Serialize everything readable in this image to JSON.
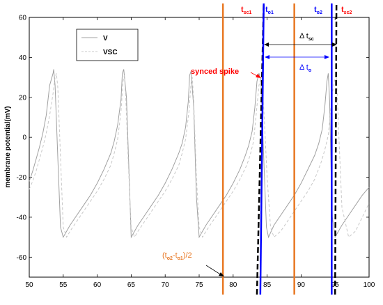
{
  "chart_data": {
    "type": "line",
    "title": "",
    "xlabel": "",
    "ylabel": "membrane potential(mV)",
    "xlim": [
      50,
      100
    ],
    "ylim": [
      -70,
      60
    ],
    "xticks": [
      50,
      55,
      60,
      65,
      70,
      75,
      80,
      85,
      90,
      95,
      100
    ],
    "yticks": [
      -60,
      -40,
      -20,
      0,
      20,
      40,
      60
    ],
    "legend": {
      "position": "top-left",
      "entries": [
        "V",
        "VSC"
      ]
    },
    "series": [
      {
        "name": "V",
        "color": "#a0a0a0",
        "style": "solid",
        "x": [
          50,
          50.5,
          51,
          51.5,
          52,
          52.5,
          53,
          53.5,
          53.6,
          53.8,
          54.2,
          54.6,
          55,
          56,
          57,
          58,
          59,
          60,
          61,
          62,
          62.5,
          63,
          63.5,
          63.7,
          63.9,
          64.3,
          64.7,
          65,
          66,
          67,
          68,
          69,
          70,
          71,
          72,
          72.5,
          73,
          73.4,
          73.6,
          73.8,
          74.2,
          74.6,
          75,
          76,
          77,
          78,
          79,
          80,
          81,
          81.8,
          82.3,
          82.8,
          83.2,
          83.5,
          83.8,
          84.1,
          84.5,
          84.9,
          85.2,
          86,
          87,
          88,
          89,
          90,
          91,
          92,
          92.6,
          93.1,
          93.5,
          93.8,
          94,
          94.2,
          94.4,
          94.6,
          95,
          96,
          97,
          98,
          99,
          100
        ],
        "y": [
          -22,
          -17,
          -11,
          -5,
          2,
          11,
          26,
          32,
          34,
          26,
          -10,
          -45,
          -50,
          -44,
          -39,
          -34,
          -29,
          -23,
          -16,
          -8,
          -2,
          6,
          19,
          32,
          34,
          20,
          -20,
          -50,
          -44,
          -39,
          -34,
          -29,
          -23,
          -16,
          -8,
          -3,
          5,
          18,
          31,
          33,
          15,
          -30,
          -50,
          -44,
          -39,
          -34,
          -29,
          -23,
          -16,
          -9,
          -4,
          3,
          15,
          28,
          32,
          28,
          -10,
          -45,
          -50,
          -44,
          -39,
          -34,
          -29,
          -23,
          -16,
          -9,
          -3,
          4,
          16,
          28,
          32,
          18,
          -15,
          -40,
          -50,
          -44,
          -39,
          -34,
          -29,
          -25
        ]
      },
      {
        "name": "VSC",
        "color": "#c8c8c8",
        "style": "dashed",
        "x": [
          50,
          50.5,
          51,
          51.5,
          52,
          52.5,
          53,
          53.5,
          53.8,
          54,
          54.2,
          54.6,
          55,
          55.5,
          56,
          57,
          58,
          59,
          60,
          61,
          62,
          62.5,
          63,
          63.5,
          63.8,
          64,
          64.2,
          64.6,
          65,
          65.5,
          66,
          67,
          68,
          69,
          70,
          71,
          72,
          72.5,
          73,
          73.5,
          73.8,
          74,
          74.2,
          74.6,
          75,
          75.5,
          76,
          77,
          78,
          79,
          80,
          81,
          82,
          82.5,
          83,
          83.4,
          83.8,
          84.1,
          84.5,
          85,
          85.5,
          86,
          87,
          88,
          89,
          90,
          91,
          92,
          93,
          93.5,
          94,
          94.3,
          94.6,
          94.9,
          95.2,
          95.5,
          96,
          97,
          98,
          99,
          100
        ],
        "y": [
          -26,
          -22,
          -17,
          -11,
          -5,
          2,
          11,
          22,
          30,
          32,
          25,
          -10,
          -45,
          -50,
          -47,
          -42,
          -37,
          -32,
          -27,
          -21,
          -14,
          -8,
          -1,
          13,
          28,
          31,
          20,
          -15,
          -45,
          -50,
          -47,
          -42,
          -37,
          -32,
          -27,
          -21,
          -14,
          -8,
          -1,
          13,
          27,
          30,
          18,
          -20,
          -45,
          -50,
          -47,
          -42,
          -37,
          -32,
          -27,
          -21,
          -14,
          -9,
          -2,
          12,
          26,
          30,
          15,
          -20,
          -45,
          -50,
          -47,
          -42,
          -37,
          -32,
          -27,
          -21,
          -12,
          -6,
          1,
          12,
          22,
          28,
          31,
          5,
          -35,
          -50,
          -47,
          -40,
          -33
        ]
      }
    ],
    "vlines": [
      {
        "x": 78.5,
        "color": "#e87722",
        "style": "solid",
        "label": "tsc1"
      },
      {
        "x": 83.5,
        "color": "#000000",
        "style": "dashed",
        "slope_to": 84.5,
        "label": ""
      },
      {
        "x": 84.0,
        "color": "#0000ff",
        "style": "solid",
        "slope_to": 84.5,
        "label": "to1"
      },
      {
        "x": 89.0,
        "color": "#e87722",
        "style": "solid",
        "label": ""
      },
      {
        "x": 94.5,
        "color": "#0000ff",
        "style": "solid",
        "label": "to2"
      },
      {
        "x": 95.0,
        "color": "#000000",
        "style": "dashed",
        "slope_to": 95.2,
        "label": "tsc2"
      }
    ],
    "annotations": {
      "tsc1": {
        "main": "t",
        "sub": "sc1"
      },
      "to1": {
        "main": "t",
        "sub": "o1"
      },
      "to2": {
        "main": "t",
        "sub": "o2"
      },
      "tsc2": {
        "main": "t",
        "sub": "sc2"
      },
      "delta_tsc": {
        "main": "Δ t",
        "sub": "sc"
      },
      "delta_to": {
        "main": "Δ t",
        "sub": "o"
      },
      "synced_spike": "synced spike",
      "half_interval": {
        "a": "(t",
        "s1": "o2",
        "b": "-t",
        "s2": "o1",
        "c": ")/2"
      }
    },
    "colors": {
      "orange": "#e87722",
      "blue": "#0000ff",
      "red": "#ff0000",
      "black": "#000000"
    }
  }
}
